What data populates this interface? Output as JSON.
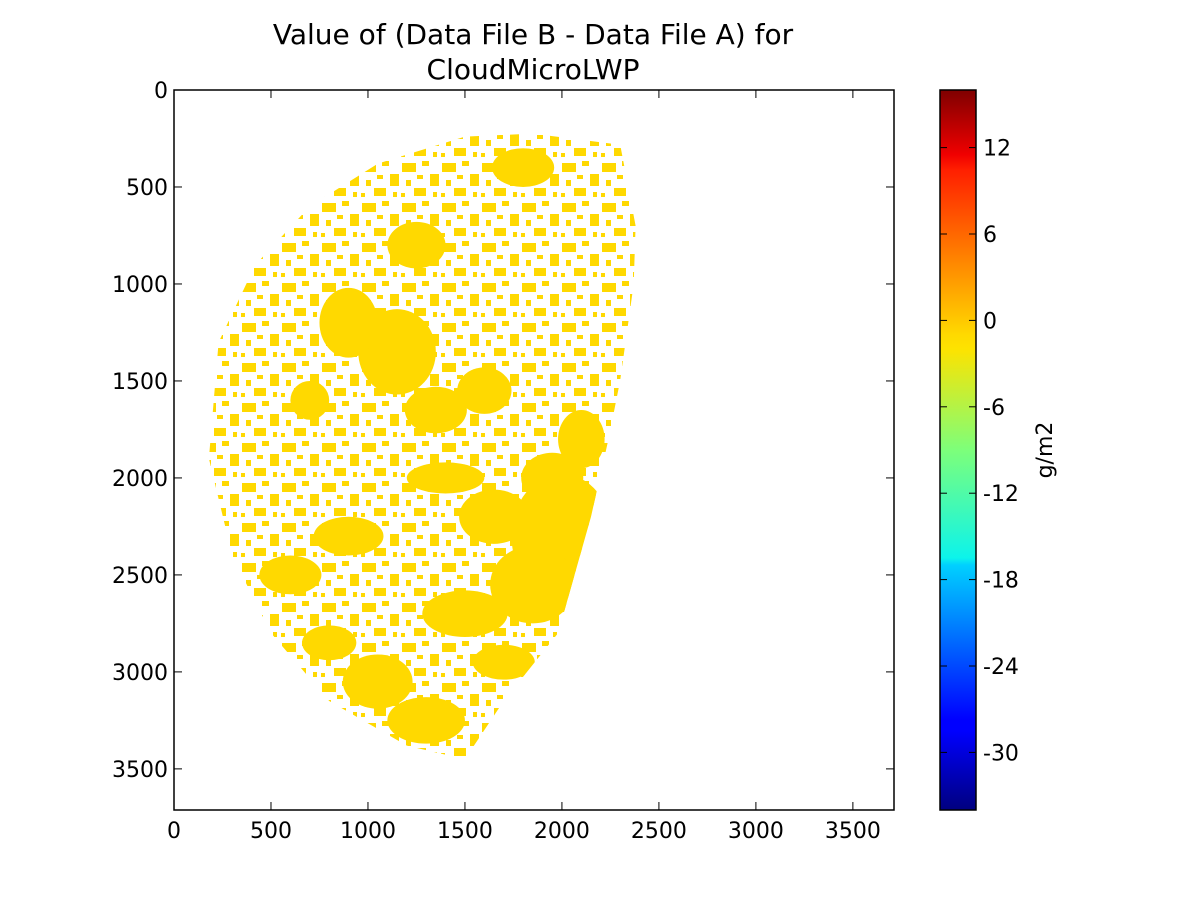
{
  "chart_data": {
    "type": "heatmap",
    "title_lines": [
      "Value of (Data File B - Data File A) for",
      "CloudMicroLWP"
    ],
    "x_axis": {
      "range": [
        0,
        3712
      ],
      "ticks": [
        0,
        500,
        1000,
        1500,
        2000,
        2500,
        3000,
        3500
      ]
    },
    "y_axis": {
      "range": [
        0,
        3712
      ],
      "inverted": true,
      "ticks": [
        0,
        500,
        1000,
        1500,
        2000,
        2500,
        3000,
        3500
      ]
    },
    "colorbar": {
      "label": "g/m2",
      "range": [
        -34,
        16
      ],
      "ticks": [
        12,
        6,
        0,
        -6,
        -12,
        -18,
        -24,
        -30
      ],
      "colormap": "jet"
    },
    "field_value": 0,
    "field_color": "#ffd900",
    "grid": false
  }
}
